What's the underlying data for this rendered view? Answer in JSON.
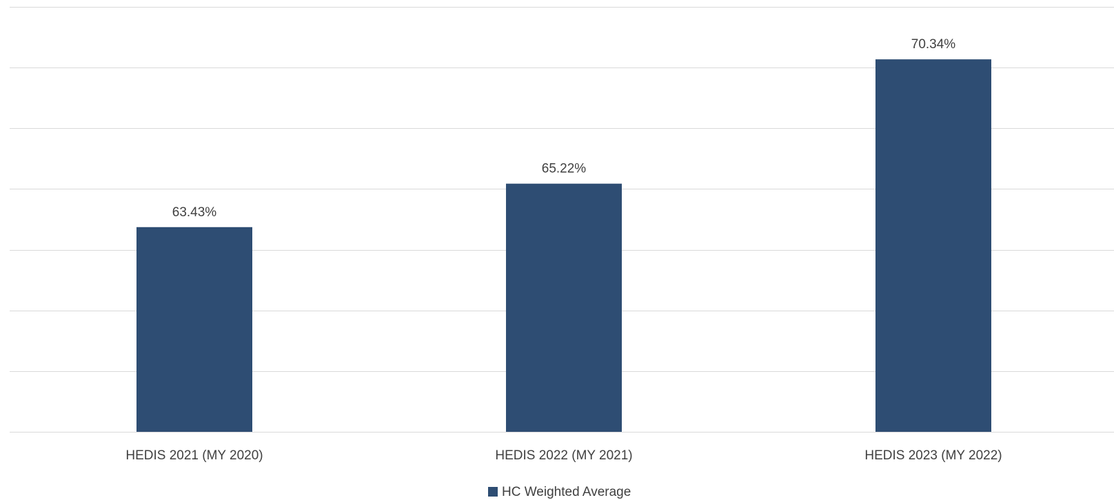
{
  "chart_data": {
    "type": "bar",
    "categories": [
      "HEDIS 2021 (MY 2020)",
      "HEDIS 2022 (MY 2021)",
      "HEDIS 2023 (MY 2022)"
    ],
    "series": [
      {
        "name": "HC Weighted Average",
        "values": [
          63.43,
          65.22,
          70.34
        ],
        "labels": [
          "63.43%",
          "65.22%",
          "70.34%"
        ],
        "color": "#2e4d73"
      }
    ],
    "ylim": [
      55,
      72
    ],
    "gridlines": [
      55,
      57.5,
      60,
      62.5,
      65,
      67.5,
      70,
      72.5
    ],
    "grid": true,
    "legend": "bottom-center",
    "gridline_color": "#d9d9d9"
  }
}
